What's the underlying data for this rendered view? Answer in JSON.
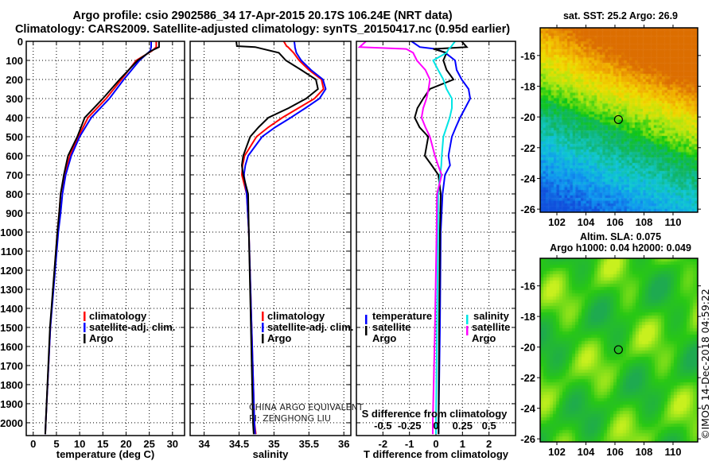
{
  "title_line1": "Argo profile: csio 2902586_34 17-Apr-2015 20.17S 106.24E (NRT data)",
  "title_line2": "Climatology: CARS2009. Satellite-adjusted climatology: synTS_20150417.nc (0.95d earlier)",
  "credit_line1": "CHINA ARGO EQUIVALENT",
  "credit_line2": "PI: ZENGHONG LIU",
  "watermark": "©IMOS 14-Dec-2018 04:59:22",
  "colors": {
    "climatology": "#ff0000",
    "satellite": "#0000ff",
    "argo": "#000000",
    "sal_satellite": "#00e5e5",
    "sal_argo": "#ff00ff"
  },
  "chart_data": [
    {
      "type": "line",
      "id": "temperature",
      "xlabel": "temperature (deg C)",
      "ylabel": "",
      "xticks": [
        0,
        5,
        10,
        15,
        20,
        25,
        30
      ],
      "xtick_labels": [
        "0",
        "5",
        "10",
        "15",
        "20",
        "25",
        "30"
      ],
      "yticks": [
        0,
        100,
        200,
        300,
        400,
        500,
        600,
        700,
        800,
        900,
        1000,
        1100,
        1200,
        1300,
        1400,
        1500,
        1600,
        1700,
        1800,
        1900,
        2000
      ],
      "ytick_labels": [
        "0",
        "100",
        "200",
        "300",
        "400",
        "500",
        "600",
        "700",
        "800",
        "900",
        "1000",
        "1100",
        "1200",
        "1300",
        "1400",
        "1500",
        "1600",
        "1700",
        "1800",
        "1900",
        "2000"
      ],
      "xlim": [
        -1.5,
        32.6
      ],
      "ylim": [
        2067,
        0
      ],
      "grid": true,
      "legend": [
        "climatology",
        "satellite-adj. clim.",
        "Argo"
      ],
      "legend_placement": "bottom-center",
      "depth": [
        0,
        30,
        50,
        100,
        200,
        300,
        400,
        500,
        600,
        700,
        800,
        900,
        1000,
        1500,
        2000,
        2060
      ],
      "series": [
        {
          "name": "climatology",
          "color_key": "climatology",
          "values": [
            26.5,
            26.5,
            25.6,
            22.2,
            19.0,
            15.7,
            11.8,
            9.7,
            7.9,
            6.8,
            5.9,
            5.6,
            5.2,
            3.7,
            2.7,
            2.6
          ]
        },
        {
          "name": "satellite-adj. clim.",
          "color_key": "satellite",
          "values": [
            25.4,
            25.4,
            25.2,
            22.9,
            19.5,
            16.4,
            12.5,
            10.0,
            8.2,
            7.0,
            6.3,
            5.9,
            5.4,
            3.7,
            2.7,
            2.6
          ]
        },
        {
          "name": "Argo",
          "color_key": "argo",
          "values": [
            27.1,
            27.1,
            25.4,
            22.5,
            18.6,
            15.0,
            11.1,
            9.5,
            7.5,
            6.6,
            5.9,
            5.6,
            5.2,
            3.6,
            2.7,
            2.6
          ]
        }
      ]
    },
    {
      "type": "line",
      "id": "salinity",
      "xlabel": "salinity",
      "ylabel": "",
      "xticks": [
        34,
        34.5,
        35,
        35.5,
        36
      ],
      "xtick_labels": [
        "34",
        "34.5",
        "35",
        "35.5",
        "36"
      ],
      "xlim": [
        33.8,
        36.1
      ],
      "ylim": [
        2067,
        0
      ],
      "grid": true,
      "legend": [
        "climatology",
        "satellite-adj. clim.",
        "Argo"
      ],
      "legend_placement": "bottom-center",
      "depth": [
        0,
        25,
        30,
        60,
        100,
        150,
        200,
        250,
        300,
        350,
        400,
        450,
        500,
        600,
        650,
        700,
        800,
        1000,
        1500,
        2000,
        2060
      ],
      "series": [
        {
          "name": "climatology",
          "color_key": "climatology",
          "values": [
            35.14,
            35.18,
            35.2,
            35.28,
            35.36,
            35.5,
            35.68,
            35.71,
            35.58,
            35.35,
            35.12,
            34.92,
            34.75,
            34.58,
            34.55,
            34.54,
            34.61,
            34.64,
            34.68,
            34.72,
            34.74
          ]
        },
        {
          "name": "satellite-adj. clim.",
          "color_key": "satellite",
          "values": [
            35.29,
            35.3,
            35.3,
            35.32,
            35.39,
            35.53,
            35.7,
            35.74,
            35.65,
            35.45,
            35.24,
            35.02,
            34.83,
            34.63,
            34.59,
            34.57,
            34.61,
            34.64,
            34.68,
            34.72,
            34.73
          ]
        },
        {
          "name": "Argo",
          "color_key": "argo",
          "values": [
            34.46,
            34.47,
            34.73,
            35.07,
            35.17,
            35.39,
            35.6,
            35.63,
            35.46,
            35.21,
            34.92,
            34.78,
            34.66,
            34.56,
            34.54,
            34.56,
            34.63,
            34.64,
            34.67,
            34.7,
            34.71
          ]
        }
      ]
    },
    {
      "type": "line",
      "id": "difference",
      "xlabel": "T difference from climatology",
      "x2label": "S difference from climatology",
      "xticks": [
        -2,
        -1,
        0,
        1,
        2
      ],
      "xtick_labels": [
        "-2",
        "-1",
        "0",
        "1",
        "2"
      ],
      "x2ticks": [
        -0.5,
        -0.25,
        0,
        0.25,
        0.5
      ],
      "x2tick_labels": [
        "-0.5",
        "-0.25",
        "0",
        "0.25",
        "0.5"
      ],
      "xlim": [
        -3,
        3
      ],
      "x2lim": [
        -0.75,
        0.75
      ],
      "ylim": [
        2067,
        0
      ],
      "grid": true,
      "legend_temperature_title": "temperature",
      "legend_salinity_title": "salinity",
      "legend_temperature": [
        "satellite",
        "Argo"
      ],
      "legend_salinity": [
        "satellite",
        "Argo"
      ],
      "depth": [
        0,
        30,
        40,
        60,
        100,
        150,
        200,
        250,
        300,
        350,
        400,
        450,
        500,
        600,
        650,
        700,
        800,
        1000,
        1500,
        2000,
        2060
      ],
      "series": [
        {
          "name": "temperature satellite",
          "axis": "T",
          "color_key": "satellite",
          "values": [
            -0.92,
            -0.61,
            0.0,
            0.35,
            0.72,
            0.78,
            0.97,
            1.23,
            1.29,
            1.1,
            0.91,
            0.75,
            0.6,
            0.47,
            0.53,
            0.34,
            0.25,
            0.18,
            0.15,
            0.1,
            0.1
          ]
        },
        {
          "name": "temperature Argo",
          "axis": "T",
          "color_key": "argo",
          "values": [
            0.97,
            1.16,
            -0.1,
            0.4,
            0.28,
            0.4,
            0.66,
            -0.23,
            -0.48,
            -0.7,
            -0.8,
            -0.62,
            -0.29,
            -0.42,
            -0.16,
            0.09,
            0.18,
            0.15,
            0.12,
            0.1,
            0.1
          ]
        },
        {
          "name": "salinity satellite",
          "axis": "S",
          "color_key": "sal_satellite",
          "values": [
            0.18,
            0.14,
            0.12,
            0.1,
            -0.026,
            0.02,
            0.07,
            0.1,
            0.15,
            0.15,
            0.13,
            0.1,
            0.07,
            0.055,
            0.05,
            0.04,
            0.02,
            0.02,
            0.01,
            0.0,
            0.0
          ]
        },
        {
          "name": "salinity Argo",
          "axis": "S",
          "color_key": "sal_argo",
          "values": [
            -0.66,
            -0.72,
            -0.28,
            -0.215,
            -0.18,
            -0.1,
            -0.057,
            -0.07,
            -0.089,
            -0.12,
            -0.136,
            -0.1,
            -0.057,
            -0.01,
            0.02,
            0.054,
            0.01,
            0.006,
            -0.01,
            -0.03,
            -0.03
          ]
        }
      ]
    },
    {
      "type": "heatmap",
      "id": "sst_map",
      "title": "sat. SST: 25.2 Argo: 26.9",
      "xticks": [
        102,
        104,
        106,
        108,
        110
      ],
      "xtick_labels": [
        "102",
        "104",
        "106",
        "108",
        "110"
      ],
      "yticks": [
        -16,
        -18,
        -20,
        -22,
        -24,
        -26
      ],
      "ytick_labels": [
        "-16",
        "-18",
        "-20",
        "-22",
        "-24",
        "-26"
      ],
      "xlim": [
        100.85,
        111.7
      ],
      "ylim": [
        -26.2,
        -14.2
      ],
      "float_position": {
        "lon": 106.24,
        "lat": -20.17
      }
    },
    {
      "type": "heatmap",
      "id": "sla_map",
      "title_line1": "Altim. SLA: 0.075",
      "title_line2": "Argo h1000: 0.04 h2000: 0.049",
      "xticks": [
        102,
        104,
        106,
        108,
        110
      ],
      "xtick_labels": [
        "102",
        "104",
        "106",
        "108",
        "110"
      ],
      "yticks": [
        -16,
        -18,
        -20,
        -22,
        -24,
        -26
      ],
      "ytick_labels": [
        "-16",
        "-18",
        "-20",
        "-22",
        "-24",
        "-26"
      ],
      "xlim": [
        100.85,
        111.7
      ],
      "ylim": [
        -26.2,
        -14.2
      ],
      "float_position": {
        "lon": 106.24,
        "lat": -20.17
      }
    }
  ]
}
